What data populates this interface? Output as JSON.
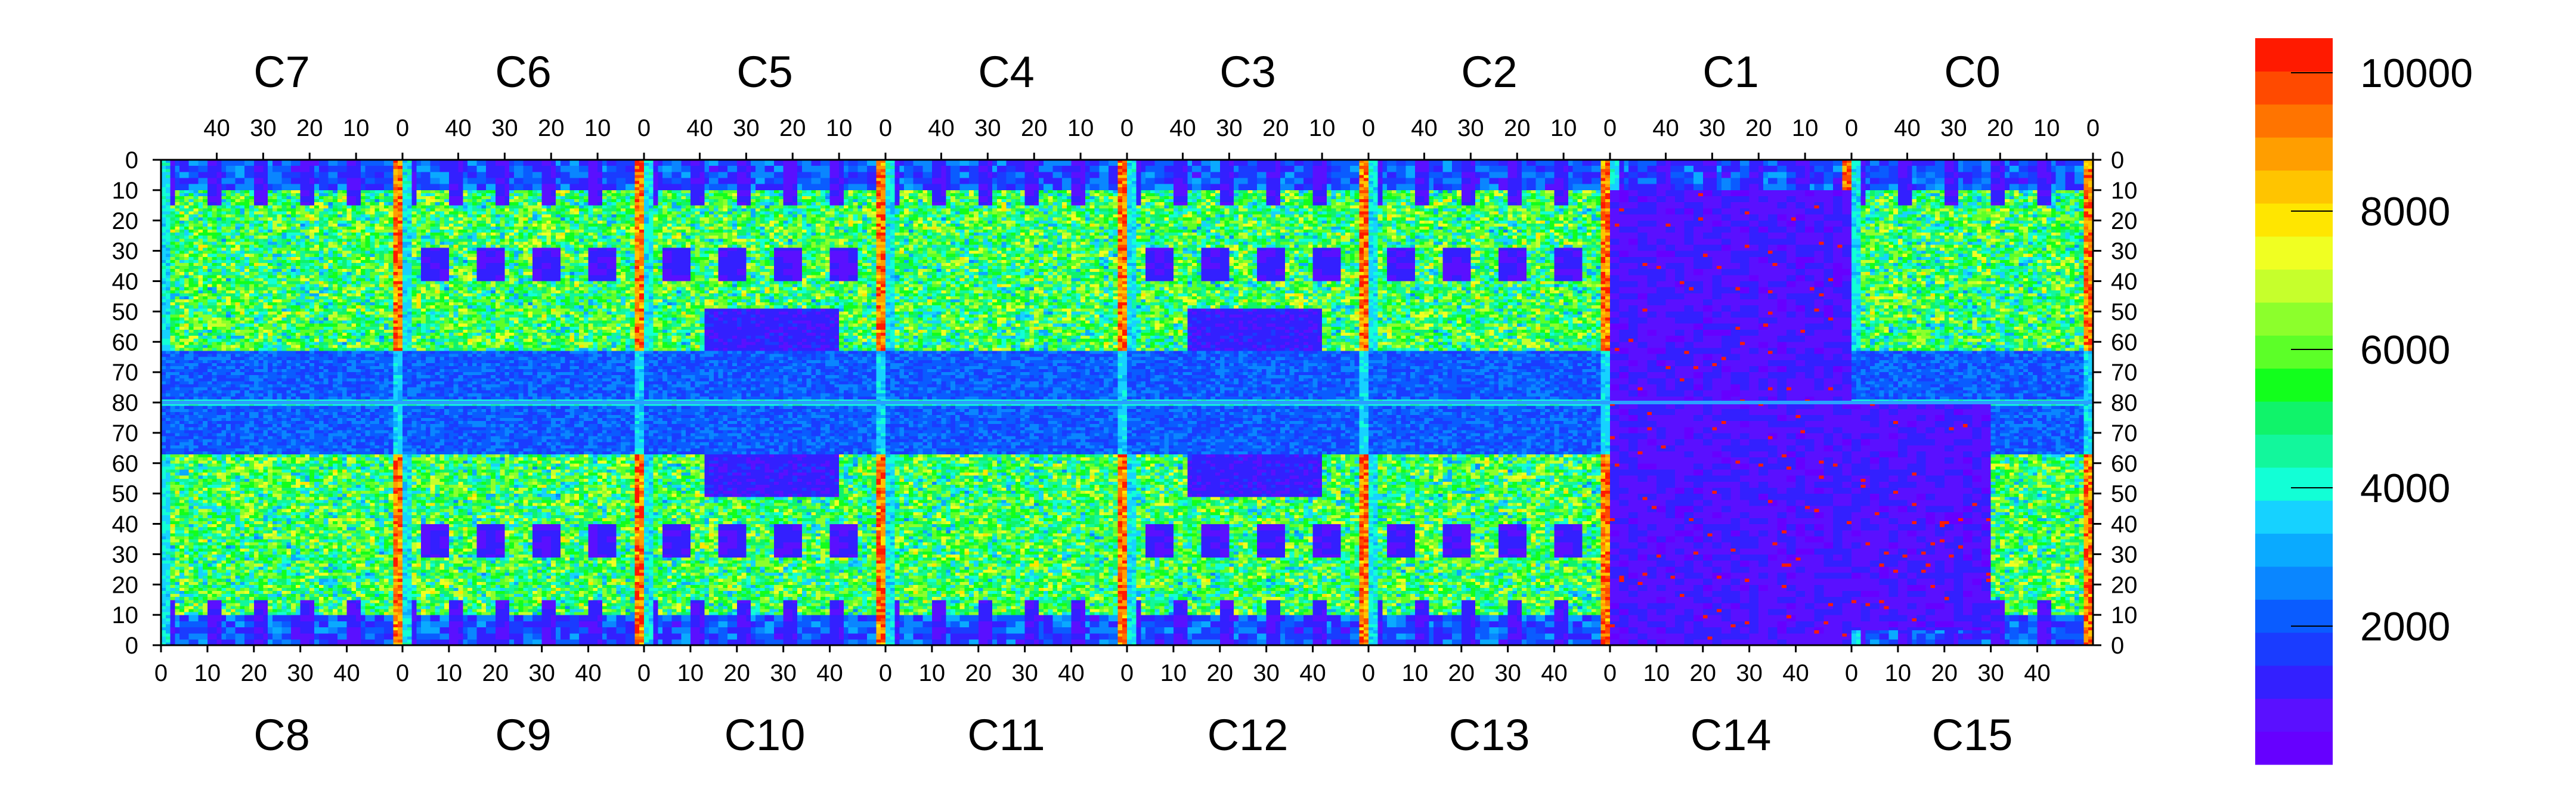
{
  "chart_data": {
    "type": "heatmap",
    "title": "",
    "xlabel": "",
    "ylabel": "",
    "grid": false,
    "top_chips": [
      "C7",
      "C6",
      "C5",
      "C4",
      "C3",
      "C2",
      "C1",
      "C0"
    ],
    "bottom_chips": [
      "C8",
      "C9",
      "C10",
      "C11",
      "C12",
      "C13",
      "C14",
      "C15"
    ],
    "top_x_ticks": [
      "40",
      "30",
      "20",
      "10",
      "0"
    ],
    "bottom_x_ticks": [
      "0",
      "10",
      "20",
      "30",
      "40"
    ],
    "y_ticks_upper": [
      "0",
      "10",
      "20",
      "30",
      "40",
      "50",
      "60",
      "70",
      "80"
    ],
    "y_ticks_lower": [
      "70",
      "60",
      "50",
      "40",
      "30",
      "20",
      "10",
      "0"
    ],
    "cols_per_chip": 52,
    "rows_per_half": 80,
    "zlim": [
      0,
      10500
    ],
    "colorbar_ticks": [
      2000,
      4000,
      6000,
      8000,
      10000
    ],
    "colorbar_tick_labels": [
      "2000",
      "4000",
      "6000",
      "8000",
      "10000"
    ],
    "palette": [
      "#6600ff",
      "#5a10ff",
      "#3320ff",
      "#1a3cff",
      "#0a5cff",
      "#0a86ff",
      "#0aaaff",
      "#16d2ff",
      "#12ffd6",
      "#12f79c",
      "#10f36a",
      "#12ff1c",
      "#5cff28",
      "#8cff2c",
      "#c6ff2c",
      "#f0ff22",
      "#ffe600",
      "#ffc400",
      "#ff9e00",
      "#ff7400",
      "#ff4a00",
      "#ff1a00"
    ]
  }
}
